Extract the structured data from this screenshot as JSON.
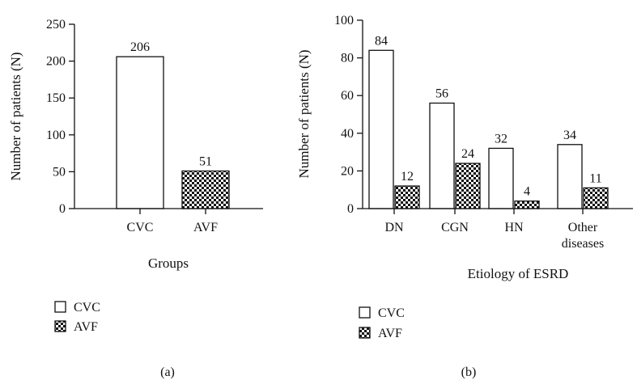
{
  "colors": {
    "cvc_fill": "#ffffff",
    "avf_pattern": "checkerboard-black-white",
    "stroke": "#111111"
  },
  "panels": [
    {
      "panel_label": "(a)",
      "legend": [
        {
          "label": "CVC",
          "swatch": "cvc"
        },
        {
          "label": "AVF",
          "swatch": "avf"
        }
      ]
    },
    {
      "panel_label": "(b)",
      "legend": [
        {
          "label": "CVC",
          "swatch": "cvc"
        },
        {
          "label": "AVF",
          "swatch": "avf"
        }
      ]
    }
  ],
  "chart_data": [
    {
      "type": "bar",
      "title": "",
      "xlabel": "Groups",
      "ylabel": "Number of patients (N)",
      "ylim": [
        0,
        250
      ],
      "yticks": [
        0,
        50,
        100,
        150,
        200,
        250
      ],
      "categories": [
        "CVC",
        "AVF"
      ],
      "bars": [
        {
          "category": "CVC",
          "series": "CVC",
          "value": 206
        },
        {
          "category": "AVF",
          "series": "AVF",
          "value": 51
        }
      ],
      "legend_position": "bottom-left",
      "grid": false
    },
    {
      "type": "bar",
      "title": "",
      "xlabel": "Etiology of ESRD",
      "ylabel": "Number of patients (N)",
      "ylim": [
        0,
        100
      ],
      "yticks": [
        0,
        20,
        40,
        60,
        80,
        100
      ],
      "categories": [
        "DN",
        "CGN",
        "HN",
        "Other diseases"
      ],
      "category_lines": [
        [
          "DN"
        ],
        [
          "CGN"
        ],
        [
          "HN"
        ],
        [
          "Other",
          "diseases"
        ]
      ],
      "series": [
        {
          "name": "CVC",
          "values": [
            84,
            56,
            32,
            34
          ]
        },
        {
          "name": "AVF",
          "values": [
            12,
            24,
            4,
            11
          ]
        }
      ],
      "legend_position": "bottom-left",
      "grid": false
    }
  ]
}
